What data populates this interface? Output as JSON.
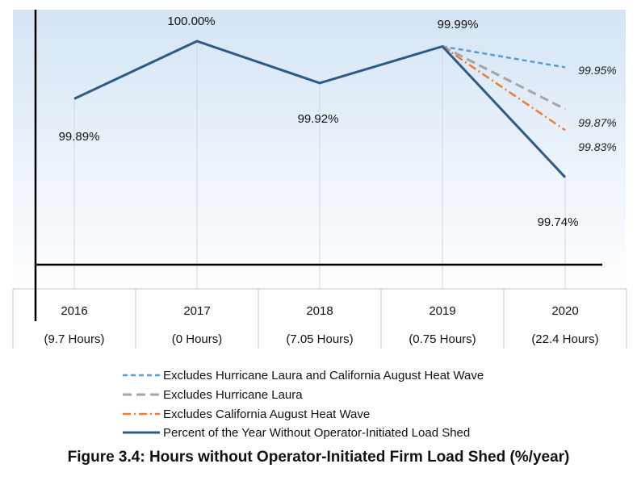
{
  "caption": "Figure 3.4: Hours without Operator-Initiated Firm Load Shed (%/year)",
  "chart_data": {
    "type": "line",
    "categories": [
      "2016",
      "2017",
      "2018",
      "2019",
      "2020"
    ],
    "subcategories": [
      "(9.7 Hours)",
      "(0 Hours)",
      "(7.05 Hours)",
      "(0.75 Hours)",
      "(22.4 Hours)"
    ],
    "ylim": [
      99.55,
      100.02
    ],
    "grid": "vertical",
    "legend_position": "bottom",
    "series": [
      {
        "name": "Excludes Hurricane Laura and California August Heat Wave",
        "color": "#5b9bd5",
        "style": "dashed-short",
        "values": [
          null,
          null,
          null,
          99.99,
          99.95
        ],
        "labels": [
          null,
          null,
          null,
          null,
          "99.95%"
        ]
      },
      {
        "name": "Excludes Hurricane Laura",
        "color": "#a5a5a5",
        "style": "dashed-long",
        "values": [
          null,
          null,
          null,
          99.99,
          99.87
        ],
        "labels": [
          null,
          null,
          null,
          null,
          "99.87%"
        ]
      },
      {
        "name": "Excludes California August Heat Wave",
        "color": "#ed7d31",
        "style": "dash-dot",
        "values": [
          null,
          null,
          null,
          99.99,
          99.83
        ],
        "labels": [
          null,
          null,
          null,
          null,
          "99.83%"
        ]
      },
      {
        "name": "Percent of the Year Without Operator-Initiated Load Shed",
        "color": "#2e5a88",
        "style": "solid",
        "values": [
          99.89,
          100.0,
          99.92,
          99.99,
          99.74
        ],
        "labels": [
          "99.89%",
          "100.00%",
          "99.92%",
          "99.99%",
          "99.74%"
        ]
      }
    ]
  }
}
